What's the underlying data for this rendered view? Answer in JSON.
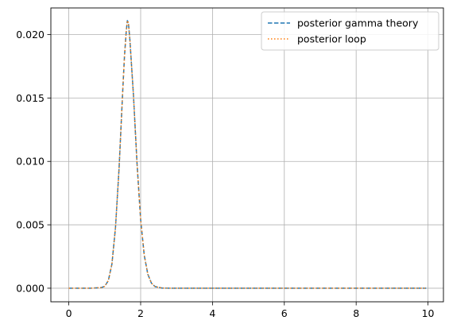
{
  "chart_data": {
    "type": "line",
    "title": "",
    "xlabel": "",
    "ylabel": "",
    "xlim": [
      -0.5,
      10.43
    ],
    "ylim": [
      -0.00107,
      0.0221
    ],
    "grid": true,
    "legend_position": "top-right",
    "x_ticks": [
      0,
      2,
      4,
      6,
      8,
      10
    ],
    "x_tick_labels": [
      "0",
      "2",
      "4",
      "6",
      "8",
      "10"
    ],
    "y_ticks": [
      0.0,
      0.005,
      0.01,
      0.015,
      0.02
    ],
    "y_tick_labels": [
      "0.000",
      "0.005",
      "0.010",
      "0.015",
      "0.020"
    ],
    "series": [
      {
        "name": "posterior gamma theory",
        "color": "#1f77b4",
        "style": "dashed",
        "x": [
          0.0,
          0.6,
          0.9,
          1.0,
          1.1,
          1.2,
          1.3,
          1.4,
          1.5,
          1.55,
          1.6,
          1.63,
          1.66,
          1.7,
          1.8,
          1.9,
          2.0,
          2.1,
          2.2,
          2.3,
          2.4,
          2.6,
          3.0,
          4.0,
          6.0,
          8.0,
          9.95
        ],
        "values": [
          0.0,
          0.0,
          5e-05,
          0.00015,
          0.0006,
          0.0019,
          0.0048,
          0.0095,
          0.0155,
          0.0183,
          0.0203,
          0.0211,
          0.0209,
          0.0196,
          0.0152,
          0.0098,
          0.0054,
          0.0026,
          0.0011,
          0.0004,
          0.00013,
          1e-05,
          0.0,
          0.0,
          0.0,
          0.0,
          0.0
        ]
      },
      {
        "name": "posterior loop",
        "color": "#ff7f0e",
        "style": "dotted",
        "x": [
          0.0,
          0.6,
          0.9,
          1.0,
          1.1,
          1.2,
          1.3,
          1.4,
          1.5,
          1.55,
          1.6,
          1.63,
          1.66,
          1.7,
          1.8,
          1.9,
          2.0,
          2.1,
          2.2,
          2.3,
          2.4,
          2.6,
          3.0,
          4.0,
          6.0,
          8.0,
          9.95
        ],
        "values": [
          0.0,
          0.0,
          5e-05,
          0.00015,
          0.0006,
          0.0019,
          0.0048,
          0.0095,
          0.0155,
          0.0183,
          0.0203,
          0.0211,
          0.0209,
          0.0196,
          0.0152,
          0.0098,
          0.0054,
          0.0026,
          0.0011,
          0.0004,
          0.00013,
          1e-05,
          0.0,
          0.0,
          0.0,
          0.0,
          0.0
        ]
      }
    ]
  }
}
